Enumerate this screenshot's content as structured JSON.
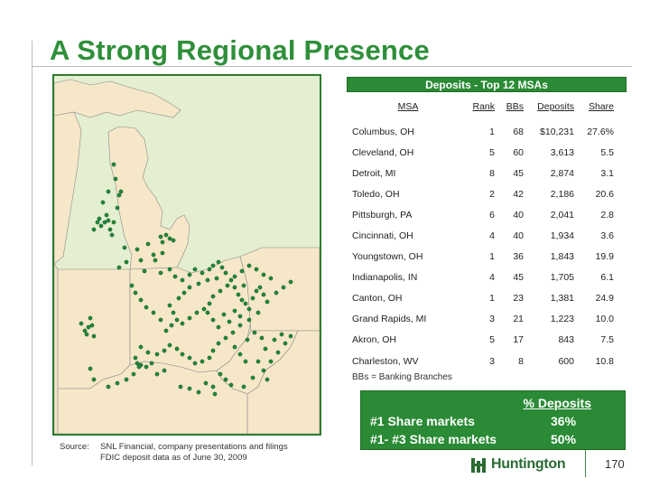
{
  "slide": {
    "title": "A Strong Regional Presence",
    "page_number": "170"
  },
  "table": {
    "header": "Deposits - Top 12 MSAs",
    "columns": [
      "MSA",
      "Rank",
      "BBs",
      "Deposits",
      "Share"
    ],
    "rows": [
      [
        "Columbus, OH",
        "1",
        "68",
        "$10,231",
        "27.6%"
      ],
      [
        "Cleveland, OH",
        "5",
        "60",
        "3,613",
        "5.5"
      ],
      [
        "Detroit, MI",
        "8",
        "45",
        "2,874",
        "3.1"
      ],
      [
        "Toledo, OH",
        "2",
        "42",
        "2,186",
        "20.6"
      ],
      [
        "Pittsburgh, PA",
        "6",
        "40",
        "2,041",
        "2.8"
      ],
      [
        "Cincinnati, OH",
        "4",
        "40",
        "1,934",
        "3.6"
      ],
      [
        "Youngstown, OH",
        "1",
        "36",
        "1,843",
        "19.9"
      ],
      [
        "Indianapolis, IN",
        "4",
        "45",
        "1,705",
        "6.1"
      ],
      [
        "Canton, OH",
        "1",
        "23",
        "1,381",
        "24.9"
      ],
      [
        "Grand Rapids, MI",
        "3",
        "21",
        "1,223",
        "10.0"
      ],
      [
        "Akron, OH",
        "5",
        "17",
        "843",
        "7.5"
      ],
      [
        "Charleston, WV",
        "3",
        "8",
        "600",
        "10.8"
      ]
    ],
    "note": "BBs  = Banking Branches"
  },
  "share_box": {
    "heading": "% Deposits",
    "rows": [
      {
        "label": "#1 Share markets",
        "value": "36%"
      },
      {
        "label": "#1- #3 Share markets",
        "value": "50%"
      }
    ]
  },
  "source": {
    "label": "Source:",
    "line1": "SNL Financial, company presentations and filings",
    "line2": "FDIC deposit data as of June 30, 2009"
  },
  "logo": {
    "text": "Huntington",
    "icon": "huntington-logo-icon"
  },
  "colors": {
    "green": "#2a8a35",
    "title_green": "#2f8f3a",
    "land": "#f6e7c9",
    "water": "#e4eed0",
    "dot": "#1f8a3a"
  }
}
